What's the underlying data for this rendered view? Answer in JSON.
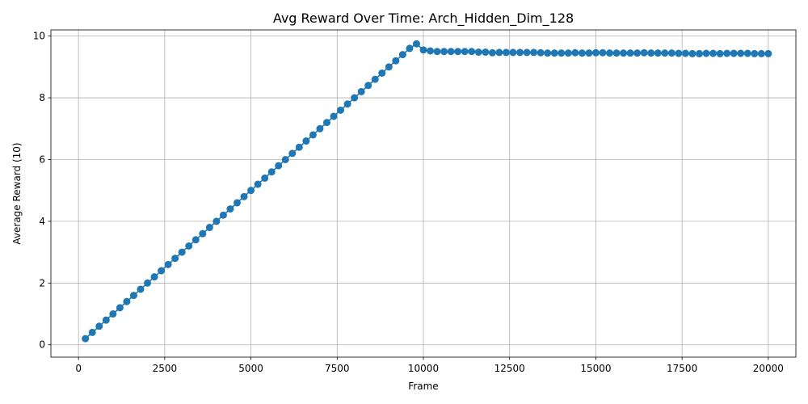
{
  "chart_data": {
    "type": "line",
    "title": "Avg Reward Over Time: Arch_Hidden_Dim_128",
    "xlabel": "Frame",
    "ylabel": "Average Reward (10)",
    "xlim": [
      -800,
      20800
    ],
    "ylim": [
      -0.4,
      10.2
    ],
    "xticks": [
      0,
      2500,
      5000,
      7500,
      10000,
      12500,
      15000,
      17500,
      20000
    ],
    "yticks": [
      0,
      2,
      4,
      6,
      8,
      10
    ],
    "grid": true,
    "marker": "circle",
    "series_color": "#1f77b4",
    "series": [
      {
        "x": [
          200,
          400,
          600,
          800,
          1000,
          1200,
          1400,
          1600,
          1800,
          2000,
          2200,
          2400,
          2600,
          2800,
          3000,
          3200,
          3400,
          3600,
          3800,
          4000,
          4200,
          4400,
          4600,
          4800,
          5000,
          5200,
          5400,
          5600,
          5800,
          6000,
          6200,
          6400,
          6600,
          6800,
          7000,
          7200,
          7400,
          7600,
          7800,
          8000,
          8200,
          8400,
          8600,
          8800,
          9000,
          9200,
          9400,
          9600,
          9800,
          10000,
          10200,
          10400,
          10600,
          10800,
          11000,
          11200,
          11400,
          11600,
          11800,
          12000,
          12200,
          12400,
          12600,
          12800,
          13000,
          13200,
          13400,
          13600,
          13800,
          14000,
          14200,
          14400,
          14600,
          14800,
          15000,
          15200,
          15400,
          15600,
          15800,
          16000,
          16200,
          16400,
          16600,
          16800,
          17000,
          17200,
          17400,
          17600,
          17800,
          18000,
          18200,
          18400,
          18600,
          18800,
          19000,
          19200,
          19400,
          19600,
          19800,
          20000
        ],
        "y": [
          0.2,
          0.4,
          0.6,
          0.8,
          1.0,
          1.2,
          1.4,
          1.6,
          1.8,
          2.0,
          2.2,
          2.4,
          2.6,
          2.8,
          3.0,
          3.2,
          3.4,
          3.6,
          3.8,
          4.0,
          4.2,
          4.4,
          4.6,
          4.8,
          5.0,
          5.2,
          5.4,
          5.6,
          5.8,
          6.0,
          6.2,
          6.4,
          6.6,
          6.8,
          7.0,
          7.2,
          7.4,
          7.6,
          7.8,
          8.0,
          8.2,
          8.4,
          8.6,
          8.8,
          9.0,
          9.2,
          9.4,
          9.6,
          9.75,
          9.55,
          9.52,
          9.5,
          9.5,
          9.5,
          9.5,
          9.5,
          9.5,
          9.48,
          9.48,
          9.46,
          9.47,
          9.47,
          9.47,
          9.47,
          9.47,
          9.47,
          9.46,
          9.45,
          9.45,
          9.45,
          9.45,
          9.46,
          9.45,
          9.45,
          9.46,
          9.46,
          9.45,
          9.45,
          9.45,
          9.45,
          9.45,
          9.46,
          9.45,
          9.45,
          9.45,
          9.45,
          9.44,
          9.44,
          9.43,
          9.43,
          9.44,
          9.44,
          9.43,
          9.44,
          9.44,
          9.44,
          9.44,
          9.43,
          9.43,
          9.43
        ]
      }
    ]
  }
}
